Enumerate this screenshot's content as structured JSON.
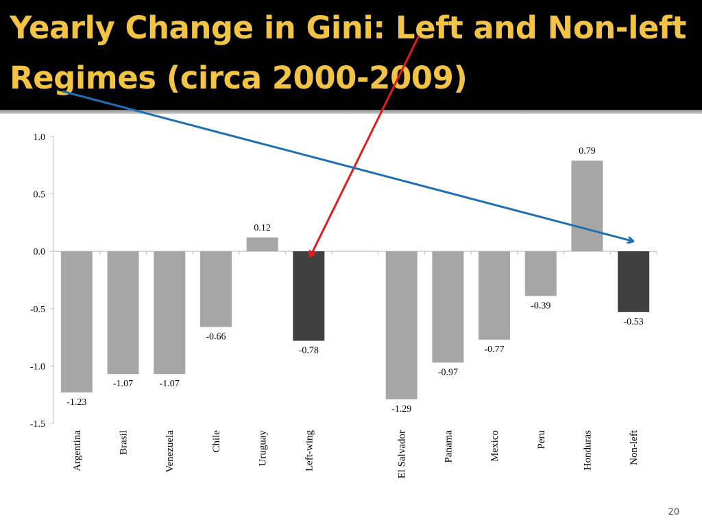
{
  "slide": {
    "title": "Yearly Change in Gini: Left and Non-left Regimes (circa 2000-2009)",
    "page_number": "20"
  },
  "colors": {
    "title_bar": "#000000",
    "title_text": "#f3c443",
    "bar_country": "#a6a6a6",
    "bar_aggregate": "#404040",
    "arrow_left": "#e41a1c",
    "arrow_nonleft": "#1f6fb5"
  },
  "chart_data": {
    "type": "bar",
    "title": "",
    "xlabel": "",
    "ylabel": "",
    "ylim": [
      -1.5,
      1.0
    ],
    "yticks": [
      1.0,
      0.5,
      0.0,
      -0.5,
      -1.0,
      -1.5
    ],
    "ytick_labels": [
      "1.0",
      "0.5",
      "0.0",
      "-0.5",
      "-1.0",
      "-1.5"
    ],
    "grid": false,
    "legend": "none",
    "categories": [
      "Argentina",
      "Brasil",
      "Venezuela",
      "Chile",
      "Uruguay",
      "Left-wing",
      "",
      "El Salvador",
      "Panama",
      "Mexico",
      "Peru",
      "Honduras",
      "Non-left"
    ],
    "values": [
      -1.23,
      -1.07,
      -1.07,
      -0.66,
      0.12,
      -0.78,
      null,
      -1.29,
      -0.97,
      -0.77,
      -0.39,
      0.79,
      -0.53
    ],
    "value_labels": [
      "-1.23",
      "-1.07",
      "-1.07",
      "-0.66",
      "0.12",
      "-0.78",
      "",
      "-1.29",
      "-0.97",
      "-0.77",
      "-0.39",
      "0.79",
      "-0.53"
    ],
    "highlight": [
      "Left-wing",
      "Non-left"
    ],
    "annotations": [
      {
        "type": "arrow",
        "color": "red",
        "from": "slide-title",
        "to": "Left-wing"
      },
      {
        "type": "arrow",
        "color": "blue",
        "from": "slide-title",
        "to": "Non-left"
      }
    ]
  }
}
